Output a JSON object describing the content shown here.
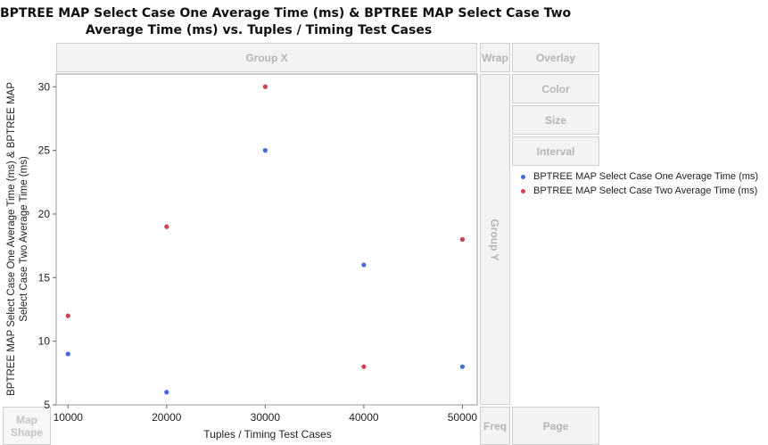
{
  "title_line1": "BPTREE MAP Select Case One Average Time (ms) & BPTREE MAP Select Case Two",
  "title_line2": "Average Time (ms) vs. Tuples / Timing Test Cases",
  "zones": {
    "group_x": "Group X",
    "group_y": "Group Y",
    "wrap": "Wrap",
    "overlay": "Overlay",
    "color": "Color",
    "size": "Size",
    "interval": "Interval",
    "map_shape": "Map Shape",
    "freq": "Freq",
    "page": "Page"
  },
  "colors": {
    "series_one": "#4169d8",
    "series_two": "#d23f55",
    "frame": "#9a9a9a",
    "zone_bg": "#f3f3f3"
  },
  "chart_data": {
    "type": "scatter",
    "title": "BPTREE MAP Select Case One Average Time (ms) & BPTREE MAP Select Case Two Average Time (ms) vs. Tuples / Timing Test Cases",
    "xlabel": "Tuples / Timing Test Cases",
    "ylabel_line1": "BPTREE MAP Select Case One Average Time (ms) & BPTREE MAP",
    "ylabel_line2": "Select Case Two Average Time (ms)",
    "x_ticks": [
      10000,
      20000,
      30000,
      40000,
      50000
    ],
    "y_ticks": [
      5,
      10,
      15,
      20,
      25,
      30
    ],
    "xlim": [
      8800,
      51500
    ],
    "ylim": [
      5,
      31
    ],
    "grid": false,
    "legend_position": "right",
    "series": [
      {
        "name": "BPTREE MAP Select Case One Average Time (ms)",
        "color": "#4169d8",
        "points": [
          [
            10000,
            9
          ],
          [
            20000,
            6
          ],
          [
            30000,
            25
          ],
          [
            40000,
            16
          ],
          [
            50000,
            8
          ]
        ]
      },
      {
        "name": "BPTREE MAP Select Case Two Average Time (ms)",
        "color": "#d23f55",
        "points": [
          [
            10000,
            12
          ],
          [
            20000,
            19
          ],
          [
            30000,
            30
          ],
          [
            40000,
            8
          ],
          [
            50000,
            18
          ]
        ]
      }
    ]
  }
}
